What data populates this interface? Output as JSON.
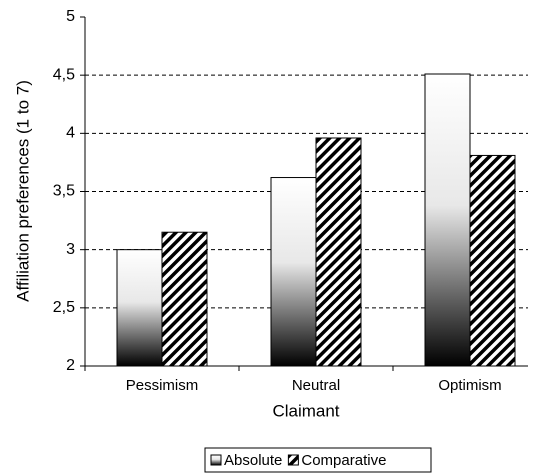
{
  "chart_data": {
    "type": "bar",
    "x_label": "Claimant",
    "y_label": "Affiliation preferences (1 to 7)",
    "categories": [
      "Pessimism",
      "Neutral",
      "Optimism"
    ],
    "series": [
      {
        "name": "Absolute",
        "values": [
          3.0,
          3.62,
          4.51
        ]
      },
      {
        "name": "Comparative",
        "values": [
          3.15,
          3.96,
          3.81
        ]
      }
    ],
    "ylim": [
      2,
      5
    ],
    "yticks": [
      2,
      {
        "value": 2.5,
        "label": "2,5"
      },
      3,
      {
        "value": 3.5,
        "label": "3,5"
      },
      4,
      {
        "value": 4.5,
        "label": "4,5"
      },
      5
    ],
    "grid": true,
    "legend": "bottom"
  }
}
